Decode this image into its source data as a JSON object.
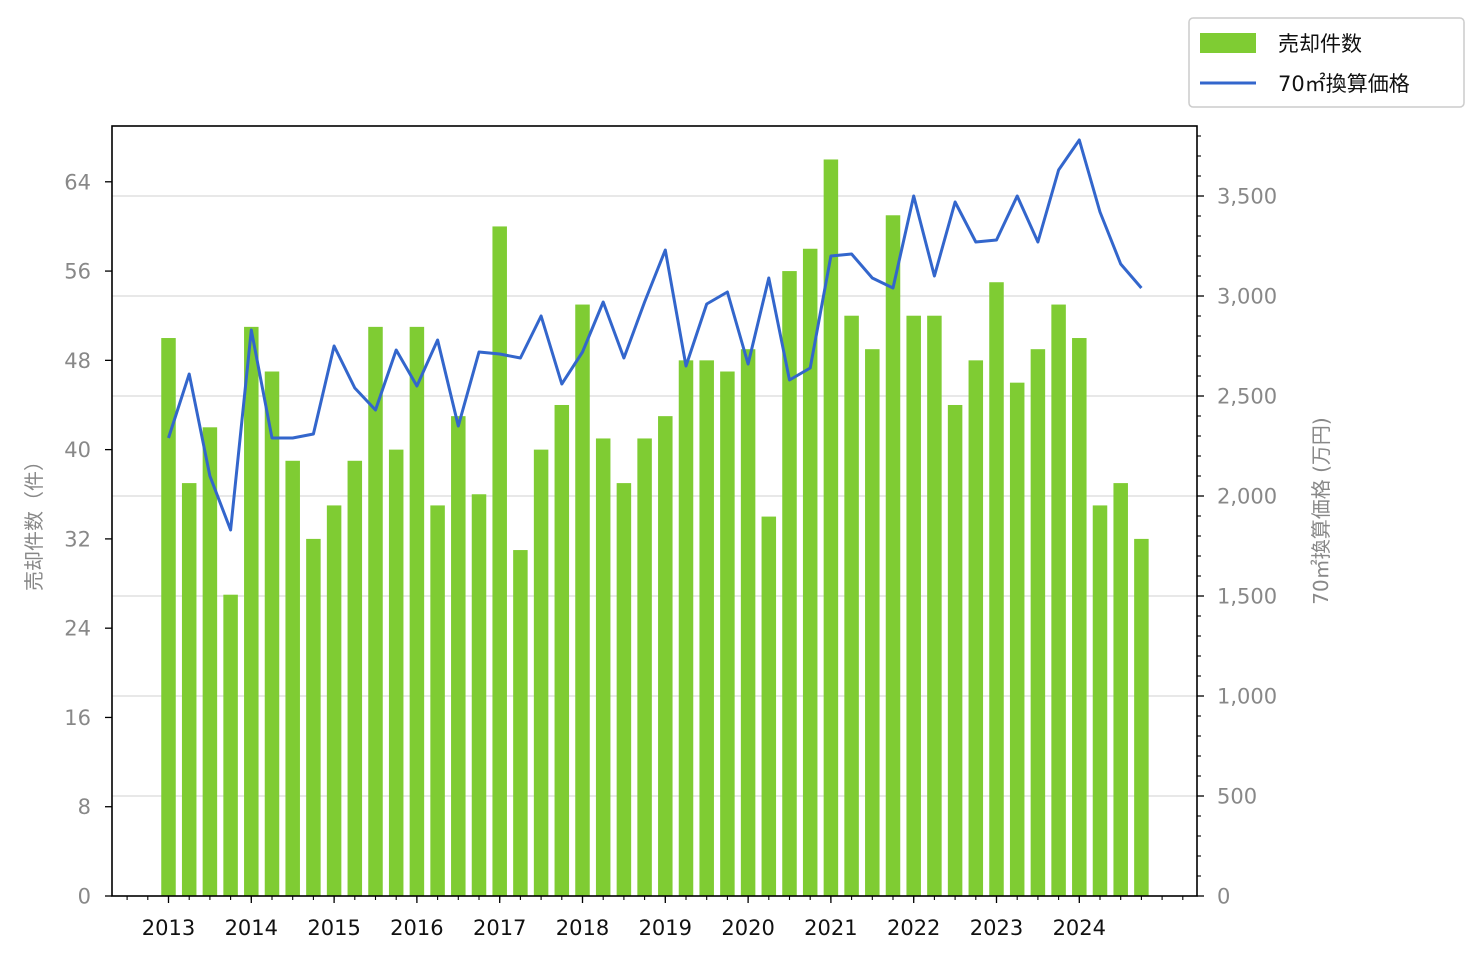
{
  "chart_data": {
    "type": "bar",
    "y_left_label": "売却件数（件）",
    "y_right_label": "70㎡換算価格 (万円)",
    "y_left_lim": [
      0,
      69
    ],
    "y_right_lim": [
      0,
      3850
    ],
    "y_left_ticks": [
      "0",
      "8",
      "16",
      "24",
      "32",
      "40",
      "48",
      "56",
      "64"
    ],
    "y_right_ticks": [
      "0",
      "500",
      "1,000",
      "1,500",
      "2,000",
      "2,500",
      "3,000",
      "3,500"
    ],
    "x_ticks": [
      "2013",
      "2014",
      "2015",
      "2016",
      "2017",
      "2018",
      "2019",
      "2020",
      "2021",
      "2022",
      "2023",
      "2024"
    ],
    "grid": "horizontal lines at right-axis ticks",
    "legend_position": "top-right, outside plot",
    "colors": {
      "bars": "#7fcc33",
      "line": "#3366cc"
    },
    "series": [
      {
        "name": "売却件数",
        "axis": "left",
        "kind": "bar",
        "values": [
          50,
          37,
          42,
          27,
          51,
          47,
          39,
          32,
          35,
          39,
          51,
          40,
          51,
          35,
          43,
          36,
          60,
          31,
          40,
          44,
          53,
          41,
          37,
          41,
          43,
          48,
          48,
          47,
          49,
          34,
          56,
          58,
          66,
          52,
          49,
          61,
          52,
          52,
          44,
          48,
          55,
          46,
          49,
          53,
          50,
          35,
          37,
          32
        ]
      },
      {
        "name": "70㎡換算価格",
        "axis": "right",
        "kind": "line",
        "values": [
          2290,
          2610,
          2100,
          1830,
          2830,
          2290,
          2290,
          2310,
          2750,
          2540,
          2430,
          2730,
          2550,
          2780,
          2350,
          2720,
          2710,
          2690,
          2900,
          2560,
          2720,
          2970,
          2690,
          2970,
          3230,
          2650,
          2960,
          3020,
          2660,
          3090,
          2580,
          2640,
          3200,
          3210,
          3090,
          3040,
          3500,
          3100,
          3470,
          3270,
          3280,
          3500,
          3270,
          3630,
          3780,
          3420,
          3160,
          3040
        ]
      }
    ]
  },
  "legend": {
    "bar_label": "売却件数",
    "line_label": "70㎡換算価格"
  }
}
